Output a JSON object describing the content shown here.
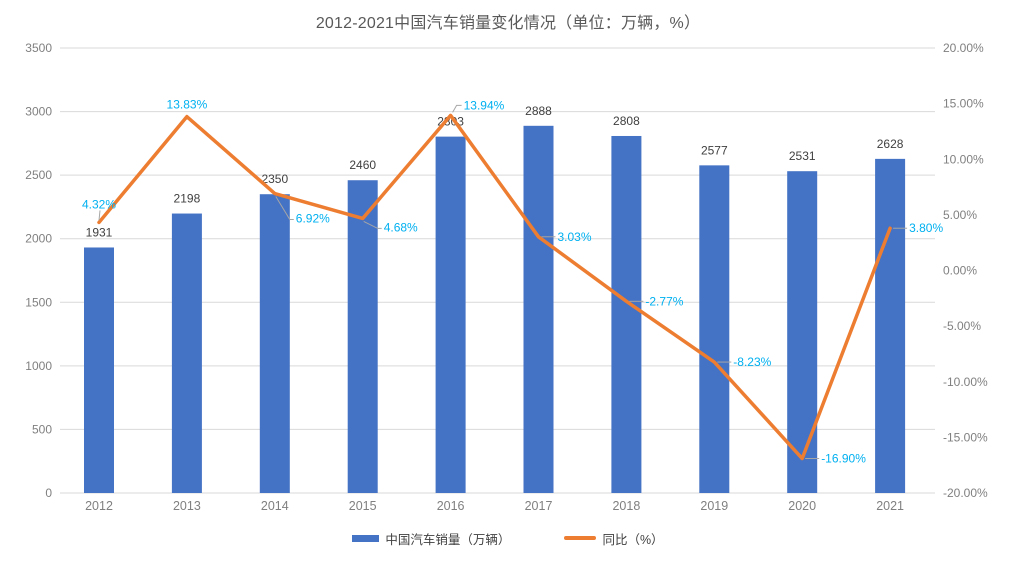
{
  "title": "2012-2021中国汽车销量变化情况（单位：万辆，%）",
  "legend": [
    {
      "label": "中国汽车销量（万辆）",
      "type": "bar",
      "color": "#4472C4"
    },
    {
      "label": "同比（%）",
      "type": "line",
      "color": "#ED7D31"
    }
  ],
  "colors": {
    "bar": "#4472C4",
    "line": "#ED7D31",
    "pct_label": "#00B0F0",
    "value_label": "#404040",
    "axis_label": "#808080",
    "grid": "#D9D9D9",
    "leader": "#A6A6A6",
    "title": "#595959"
  },
  "chart_data": {
    "type": "bar+line combo",
    "title": "2012-2021中国汽车销量变化情况（单位：万辆，%）",
    "categories": [
      "2012",
      "2013",
      "2014",
      "2015",
      "2016",
      "2017",
      "2018",
      "2019",
      "2020",
      "2021"
    ],
    "series": [
      {
        "name": "中国汽车销量（万辆）",
        "type": "bar",
        "axis": "left",
        "color": "#4472C4",
        "values": [
          1931,
          2198,
          2350,
          2460,
          2803,
          2888,
          2808,
          2577,
          2531,
          2628
        ],
        "labels": [
          "1931",
          "2198",
          "2350",
          "2460",
          "2803",
          "2888",
          "2808",
          "2577",
          "2531",
          "2628"
        ]
      },
      {
        "name": "同比（%）",
        "type": "line",
        "axis": "right",
        "color": "#ED7D31",
        "values": [
          4.32,
          13.83,
          6.92,
          4.68,
          13.94,
          3.03,
          -2.77,
          -8.23,
          -16.9,
          3.8
        ],
        "labels": [
          "4.32%",
          "13.83%",
          "6.92%",
          "4.68%",
          "13.94%",
          "3.03%",
          "-2.77%",
          "-8.23%",
          "-16.90%",
          "3.80%"
        ]
      }
    ],
    "left_axis": {
      "min": 0,
      "max": 3500,
      "step": 500,
      "ticks": [
        "3500",
        "3000",
        "2500",
        "2000",
        "1500",
        "1000",
        "500",
        "0"
      ]
    },
    "right_axis": {
      "min": -20,
      "max": 20,
      "step": 5,
      "ticks": [
        "20.00%",
        "15.00%",
        "10.00%",
        "5.00%",
        "0.00%",
        "-5.00%",
        "-10.00%",
        "-15.00%",
        "-20.00%"
      ]
    },
    "grid": "horizontal",
    "legend_position": "bottom"
  }
}
